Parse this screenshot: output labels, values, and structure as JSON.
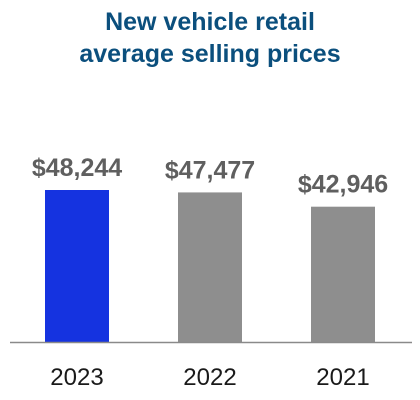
{
  "chart_data": {
    "type": "bar",
    "title_lines": [
      "New vehicle retail",
      "average selling prices"
    ],
    "title": "New vehicle retail average selling prices",
    "categories": [
      "2023",
      "2022",
      "2021"
    ],
    "values": [
      48244,
      47477,
      42946
    ],
    "data_labels": [
      "$48,244",
      "$47,477",
      "$42,946"
    ],
    "xlabel": "",
    "ylabel": "",
    "ylim": [
      0,
      55000
    ],
    "grid": false,
    "legend": "none",
    "colors": {
      "highlight": "#1533e0",
      "default": "#8e8e8e",
      "title": "#0b4f7d",
      "label": "#5f5f5f",
      "axis": "#8a8a8a"
    }
  }
}
